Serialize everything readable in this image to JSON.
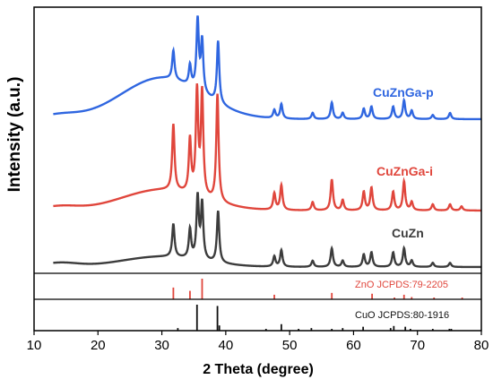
{
  "chart_data": {
    "type": "line",
    "xlabel": "2 Theta (degree)",
    "ylabel": "Intensity (a.u.)",
    "xlim": [
      10,
      80
    ],
    "xticks": [
      10,
      20,
      30,
      40,
      50,
      60,
      70,
      80
    ],
    "grid": false,
    "series": [
      {
        "name": "CuZnGa-p",
        "color": "#2f66e0",
        "baseline": 0.2,
        "peaks": [
          [
            31.8,
            0.14
          ],
          [
            34.4,
            0.1
          ],
          [
            35.6,
            0.34
          ],
          [
            36.3,
            0.25
          ],
          [
            38.8,
            0.3
          ],
          [
            47.6,
            0.04
          ],
          [
            48.7,
            0.07
          ],
          [
            53.6,
            0.03
          ],
          [
            56.6,
            0.08
          ],
          [
            58.3,
            0.03
          ],
          [
            61.6,
            0.05
          ],
          [
            62.8,
            0.06
          ],
          [
            66.2,
            0.06
          ],
          [
            67.9,
            0.09
          ],
          [
            69.1,
            0.04
          ],
          [
            72.4,
            0.02
          ],
          [
            75.1,
            0.03
          ]
        ]
      },
      {
        "name": "CuZnGa-i",
        "color": "#e0463c",
        "baseline": 0.1,
        "peaks": [
          [
            31.8,
            0.32
          ],
          [
            34.4,
            0.26
          ],
          [
            35.5,
            0.5
          ],
          [
            36.3,
            0.5
          ],
          [
            38.7,
            0.52
          ],
          [
            47.6,
            0.08
          ],
          [
            48.7,
            0.12
          ],
          [
            53.6,
            0.04
          ],
          [
            56.6,
            0.15
          ],
          [
            58.3,
            0.05
          ],
          [
            61.6,
            0.09
          ],
          [
            62.8,
            0.11
          ],
          [
            66.2,
            0.09
          ],
          [
            67.9,
            0.14
          ],
          [
            69.1,
            0.04
          ],
          [
            72.4,
            0.03
          ],
          [
            75.1,
            0.03
          ],
          [
            76.9,
            0.02
          ]
        ]
      },
      {
        "name": "CuZn",
        "color": "#3c3c3c",
        "baseline": 0.05,
        "peaks": [
          [
            31.8,
            0.16
          ],
          [
            34.4,
            0.14
          ],
          [
            35.6,
            0.3
          ],
          [
            36.3,
            0.27
          ],
          [
            38.8,
            0.25
          ],
          [
            47.6,
            0.05
          ],
          [
            48.7,
            0.08
          ],
          [
            53.6,
            0.03
          ],
          [
            56.6,
            0.09
          ],
          [
            58.3,
            0.03
          ],
          [
            61.6,
            0.06
          ],
          [
            62.8,
            0.07
          ],
          [
            66.2,
            0.07
          ],
          [
            67.9,
            0.09
          ],
          [
            69.1,
            0.03
          ],
          [
            72.4,
            0.02
          ],
          [
            75.1,
            0.02
          ]
        ]
      }
    ],
    "reference_patterns": [
      {
        "name": "ZnO JCPDS:79-2205",
        "color": "#e0463c",
        "lines": [
          [
            31.8,
            0.57
          ],
          [
            34.4,
            0.41
          ],
          [
            36.3,
            1.0
          ],
          [
            47.6,
            0.22
          ],
          [
            56.6,
            0.31
          ],
          [
            62.9,
            0.27
          ],
          [
            66.4,
            0.05
          ],
          [
            67.9,
            0.22
          ],
          [
            69.1,
            0.11
          ],
          [
            72.6,
            0.02
          ],
          [
            77.0,
            0.04
          ]
        ]
      },
      {
        "name": "CuO JCPDS:80-1916",
        "color": "#111111",
        "lines": [
          [
            32.5,
            0.1
          ],
          [
            35.5,
            1.0
          ],
          [
            38.7,
            0.95
          ],
          [
            39.0,
            0.2
          ],
          [
            46.3,
            0.03
          ],
          [
            48.7,
            0.25
          ],
          [
            51.4,
            0.03
          ],
          [
            53.4,
            0.1
          ],
          [
            56.6,
            0.05
          ],
          [
            58.3,
            0.1
          ],
          [
            61.5,
            0.15
          ],
          [
            65.8,
            0.1
          ],
          [
            66.3,
            0.18
          ],
          [
            68.1,
            0.15
          ],
          [
            68.9,
            0.02
          ],
          [
            72.4,
            0.05
          ],
          [
            75.0,
            0.07
          ],
          [
            75.3,
            0.05
          ]
        ]
      }
    ]
  }
}
